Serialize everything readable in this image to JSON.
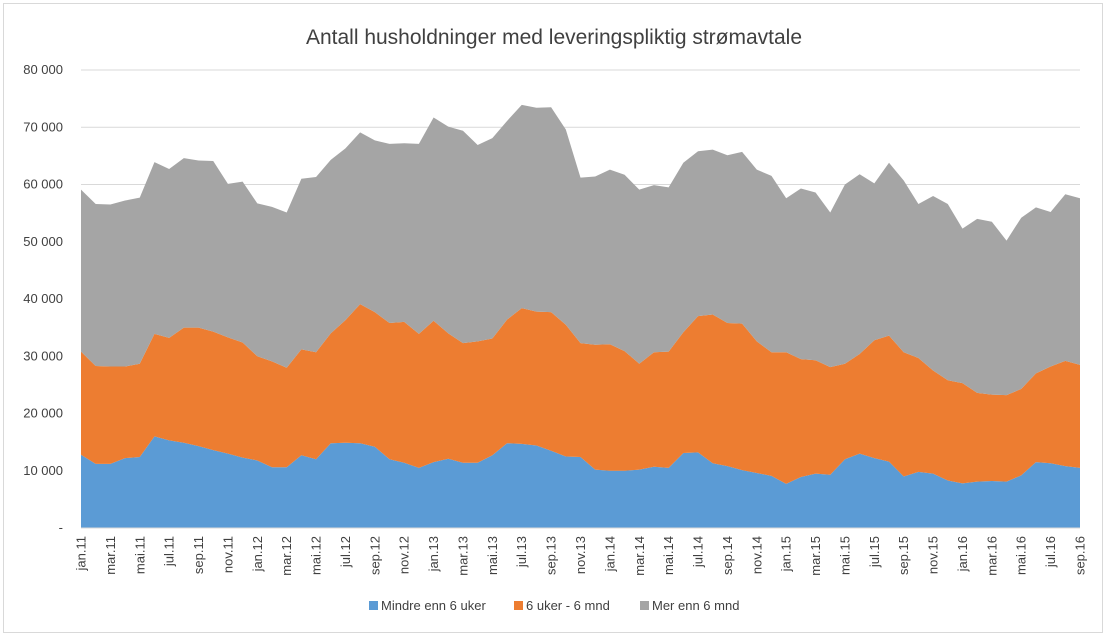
{
  "chart_data": {
    "type": "area",
    "stacked": true,
    "title": "Antall husholdninger med leveringspliktig strømavtale",
    "xlabel": "",
    "ylabel": "",
    "ylim": [
      0,
      80000
    ],
    "y_ticks": [
      0,
      10000,
      20000,
      30000,
      40000,
      50000,
      60000,
      70000,
      80000
    ],
    "y_tick_labels": [
      "-",
      "10 000",
      "20 000",
      "30 000",
      "40 000",
      "50 000",
      "60 000",
      "70 000",
      "80 000"
    ],
    "grid": true,
    "legend_position": "bottom",
    "categories": [
      "jan.11",
      "feb.11",
      "mar.11",
      "apr.11",
      "mai.11",
      "jun.11",
      "jul.11",
      "aug.11",
      "sep.11",
      "okt.11",
      "nov.11",
      "des.11",
      "jan.12",
      "feb.12",
      "mar.12",
      "apr.12",
      "mai.12",
      "jun.12",
      "jul.12",
      "aug.12",
      "sep.12",
      "okt.12",
      "nov.12",
      "des.12",
      "jan.13",
      "feb.13",
      "mar.13",
      "apr.13",
      "mai.13",
      "jun.13",
      "jul.13",
      "aug.13",
      "sep.13",
      "okt.13",
      "nov.13",
      "des.13",
      "jan.14",
      "feb.14",
      "mar.14",
      "apr.14",
      "mai.14",
      "jun.14",
      "jul.14",
      "aug.14",
      "sep.14",
      "okt.14",
      "nov.14",
      "des.14",
      "jan.15",
      "feb.15",
      "mar.15",
      "apr.15",
      "mai.15",
      "jun.15",
      "jul.15",
      "aug.15",
      "sep.15",
      "okt.15",
      "nov.15",
      "des.15",
      "jan.16",
      "feb.16",
      "mar.16",
      "apr.16",
      "mai.16",
      "jun.16",
      "jul.16",
      "aug.16",
      "sep.16"
    ],
    "tick_labels": [
      "jan.11",
      "mar.11",
      "mai.11",
      "jul.11",
      "sep.11",
      "nov.11",
      "jan.12",
      "mar.12",
      "mai.12",
      "jul.12",
      "sep.12",
      "nov.12",
      "jan.13",
      "mar.13",
      "mai.13",
      "jul.13",
      "sep.13",
      "nov.13",
      "jan.14",
      "mar.14",
      "mai.14",
      "jul.14",
      "sep.14",
      "nov.14",
      "jan.15",
      "mar.15",
      "mai.15",
      "jul.15",
      "sep.15",
      "nov.15",
      "jan.16",
      "mar.16",
      "mai.16",
      "jul.16",
      "sep.16"
    ],
    "series": [
      {
        "name": "Mindre enn 6 uker",
        "color": "#5b9bd5",
        "values": [
          12800,
          11200,
          11200,
          12200,
          12400,
          16000,
          15300,
          14900,
          14300,
          13600,
          13000,
          12300,
          11800,
          10600,
          10600,
          12700,
          12000,
          14800,
          14900,
          14800,
          14200,
          12000,
          11400,
          10500,
          11500,
          12100,
          11400,
          11400,
          12700,
          14800,
          14700,
          14400,
          13500,
          12500,
          12400,
          10200,
          10000,
          10000,
          10200,
          10700,
          10500,
          13100,
          13200,
          11300,
          10800,
          10100,
          9600,
          9100,
          7700,
          8900,
          9500,
          9300,
          12000,
          13000,
          12200,
          11600,
          9000,
          9800,
          9500,
          8300,
          7800,
          8100,
          8200,
          8100,
          9200,
          11500,
          11300,
          10800,
          10500
        ]
      },
      {
        "name": "6 uker - 6 mnd",
        "color": "#ed7d31",
        "values": [
          18000,
          17100,
          17000,
          16000,
          16300,
          17900,
          17900,
          20100,
          20700,
          20700,
          20300,
          20100,
          18200,
          18500,
          17400,
          18500,
          18700,
          19200,
          21400,
          24300,
          23500,
          23800,
          24600,
          23400,
          24700,
          21900,
          20900,
          21200,
          20400,
          21600,
          23700,
          23400,
          24200,
          23000,
          19900,
          21800,
          22100,
          20900,
          18500,
          20000,
          20300,
          21100,
          23800,
          26000,
          25000,
          25600,
          23000,
          21600,
          23000,
          20600,
          19800,
          18800,
          16700,
          17400,
          20600,
          22000,
          21700,
          19900,
          18000,
          17500,
          17500,
          15500,
          15100,
          15100,
          15100,
          15500,
          16900,
          18400,
          18000
        ]
      },
      {
        "name": "Mer enn 6 mnd",
        "color": "#a5a5a5",
        "values": [
          28300,
          28300,
          28300,
          29000,
          29000,
          30000,
          29500,
          29600,
          29200,
          29800,
          26800,
          28100,
          26700,
          27000,
          27100,
          29800,
          30600,
          30300,
          30000,
          30000,
          30000,
          31300,
          31200,
          33200,
          35500,
          36100,
          37100,
          34300,
          35000,
          34700,
          35500,
          35600,
          35800,
          34100,
          28900,
          29400,
          30500,
          30800,
          30400,
          29200,
          28700,
          29600,
          28800,
          28800,
          29300,
          30000,
          30000,
          30800,
          26900,
          29800,
          29300,
          27000,
          31300,
          31400,
          27400,
          30200,
          30000,
          26900,
          30500,
          30800,
          27000,
          30400,
          30200,
          27000,
          29900,
          29000,
          27000,
          29100,
          29100
        ]
      }
    ]
  }
}
